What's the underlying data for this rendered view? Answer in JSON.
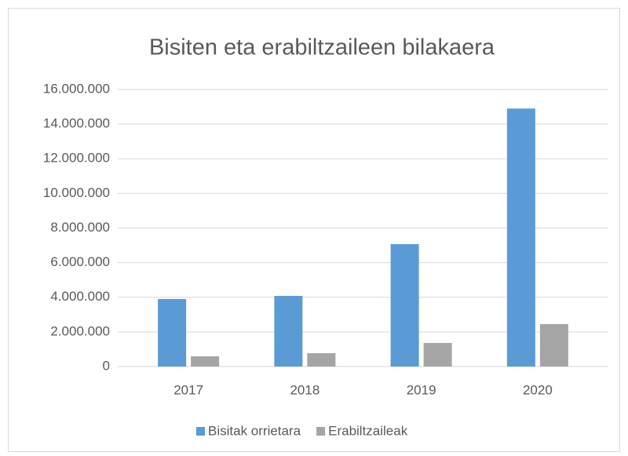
{
  "chart_data": {
    "type": "bar",
    "title": "Bisiten eta erabiltzaileen bilakaera",
    "categories": [
      "2017",
      "2018",
      "2019",
      "2020"
    ],
    "series": [
      {
        "name": "Bisitak orrietara",
        "color": "#5b9bd5",
        "values": [
          3900000,
          4080000,
          7070000,
          14900000
        ]
      },
      {
        "name": "Erabiltzaileak",
        "color": "#a5a5a5",
        "values": [
          590000,
          770000,
          1360000,
          2450000
        ]
      }
    ],
    "ylim": [
      0,
      16000000
    ],
    "yticks": [
      0,
      {
        "value": 2000000,
        "label": "2.000.000"
      },
      {
        "value": 4000000,
        "label": "4.000.000"
      },
      {
        "value": 6000000,
        "label": "6.000.000"
      },
      {
        "value": 8000000,
        "label": "8.000.000"
      },
      {
        "value": 10000000,
        "label": "10.000.000"
      },
      {
        "value": 12000000,
        "label": "12.000.000"
      },
      {
        "value": 14000000,
        "label": "14.000.000"
      },
      {
        "value": 16000000,
        "label": "16.000.000"
      }
    ],
    "grid": true,
    "legend": "bottom"
  }
}
